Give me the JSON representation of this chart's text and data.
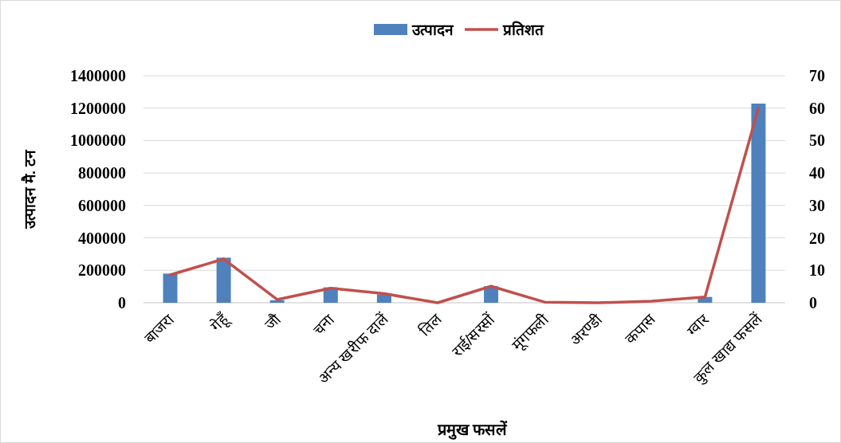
{
  "chart_data": {
    "type": "bar",
    "xlabel": "प्रमुख फसलें",
    "ylabel": "उत्पादन मै. टन",
    "categories": [
      "बाजरा",
      "गेहूँ",
      "जौ",
      "चना",
      "अन्य खरीफ दालें",
      "तिल",
      "राई/सरसों",
      "मूंगफली",
      "अरण्डी",
      "कपास",
      "ग्वार",
      "कुल खाद्य फसलें"
    ],
    "series": [
      {
        "name": "उत्पादन",
        "color": "#4f81bd",
        "values": [
          180000,
          278000,
          16000,
          95000,
          52000,
          null,
          102000,
          null,
          null,
          null,
          36000,
          1228000
        ]
      },
      {
        "name": "प्रतिशत",
        "type": "line",
        "axis": "y2",
        "color": "#c0504d",
        "values": [
          8.6,
          13.5,
          1.0,
          4.5,
          2.8,
          0,
          5.1,
          0.2,
          0,
          0.5,
          1.8,
          60
        ]
      }
    ],
    "ylim": [
      0,
      1400000
    ],
    "yticks": [
      0,
      200000,
      400000,
      600000,
      800000,
      1000000,
      1200000,
      1400000
    ],
    "y2lim": [
      0,
      70
    ],
    "y2ticks": [
      0,
      10,
      20,
      30,
      40,
      50,
      60,
      70
    ],
    "grid": "y",
    "legend": "top",
    "marker": "none",
    "line_style": "solid"
  }
}
